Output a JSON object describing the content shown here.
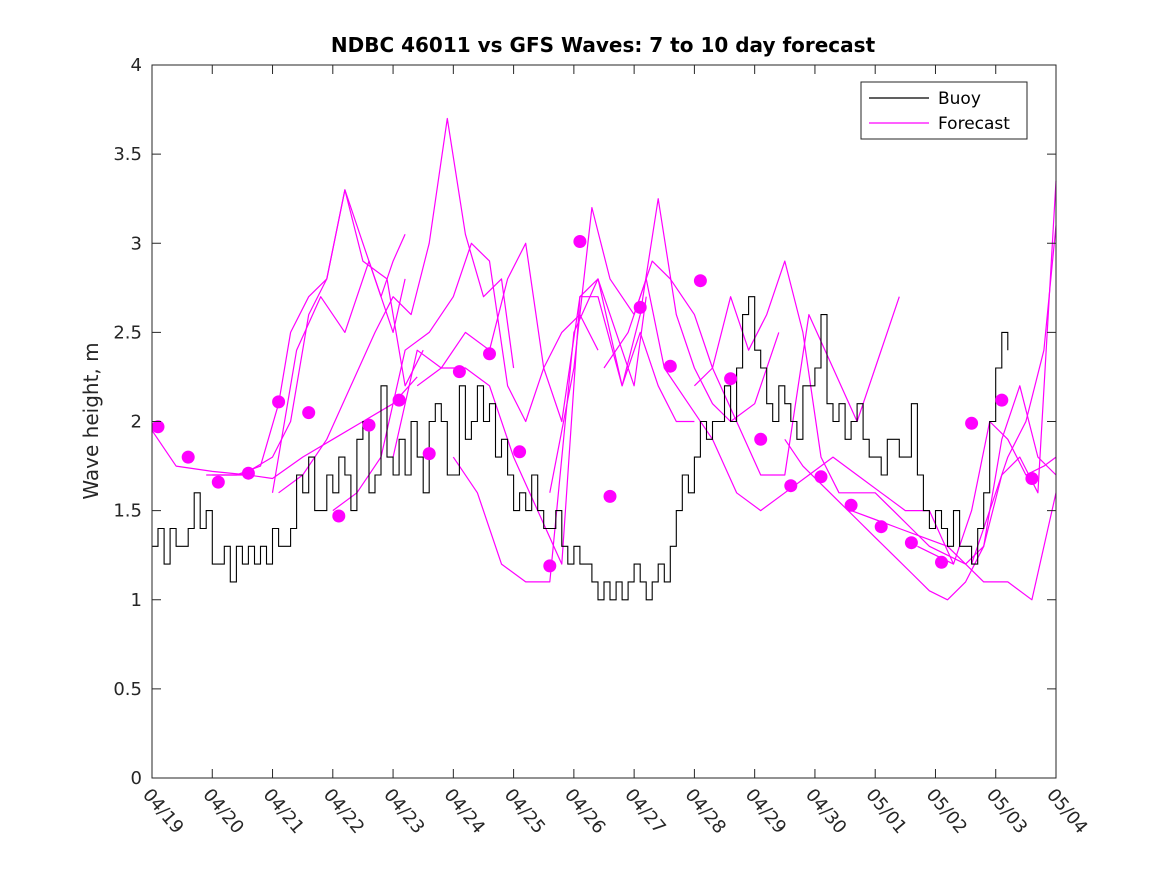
{
  "chart_data": {
    "type": "line",
    "title": "NDBC 46011 vs GFS Waves: 7 to 10 day forecast",
    "xlabel": "",
    "ylabel": "Wave height, m",
    "xlim": [
      "04/19",
      "05/04"
    ],
    "ylim": [
      0,
      4
    ],
    "yticks": [
      0,
      0.5,
      1,
      1.5,
      2,
      2.5,
      3,
      3.5,
      4
    ],
    "ytick_labels": [
      "0",
      "0.5",
      "1",
      "1.5",
      "2",
      "2.5",
      "3",
      "3.5",
      "4"
    ],
    "xtick_labels": [
      "04/19",
      "04/20",
      "04/21",
      "04/22",
      "04/23",
      "04/24",
      "04/25",
      "04/26",
      "04/27",
      "04/28",
      "04/29",
      "04/30",
      "05/01",
      "05/02",
      "05/03",
      "05/04"
    ],
    "legend": {
      "position": "top-right",
      "entries": [
        "Buoy",
        "Forecast"
      ]
    },
    "colors": {
      "buoy": "#000000",
      "forecast": "#ff00ff",
      "axis": "#262626"
    },
    "buoy": {
      "name": "Buoy",
      "x_days_since_0419": [
        0.0,
        0.1,
        0.2,
        0.3,
        0.4,
        0.5,
        0.6,
        0.7,
        0.8,
        0.9,
        1.0,
        1.1,
        1.2,
        1.3,
        1.4,
        1.5,
        1.6,
        1.7,
        1.8,
        1.9,
        2.0,
        2.1,
        2.2,
        2.3,
        2.4,
        2.5,
        2.6,
        2.7,
        2.8,
        2.9,
        3.0,
        3.1,
        3.2,
        3.3,
        3.4,
        3.5,
        3.6,
        3.7,
        3.8,
        3.9,
        4.0,
        4.1,
        4.2,
        4.3,
        4.4,
        4.5,
        4.6,
        4.7,
        4.8,
        4.9,
        5.0,
        5.1,
        5.2,
        5.3,
        5.4,
        5.5,
        5.6,
        5.7,
        5.8,
        5.9,
        6.0,
        6.1,
        6.2,
        6.3,
        6.4,
        6.5,
        6.6,
        6.7,
        6.8,
        6.9,
        7.0,
        7.1,
        7.2,
        7.3,
        7.4,
        7.5,
        7.6,
        7.7,
        7.8,
        7.9,
        8.0,
        8.1,
        8.2,
        8.3,
        8.4,
        8.5,
        8.6,
        8.7,
        8.8,
        8.9,
        9.0,
        9.1,
        9.2,
        9.3,
        9.4,
        9.5,
        9.6,
        9.7,
        9.8,
        9.9,
        10.0,
        10.1,
        10.2,
        10.3,
        10.4,
        10.5,
        10.6,
        10.7,
        10.8,
        10.9,
        11.0,
        11.1,
        11.2,
        11.3,
        11.4,
        11.5,
        11.6,
        11.7,
        11.8,
        11.9,
        12.0,
        12.1,
        12.2,
        12.3,
        12.4,
        12.5,
        12.6,
        12.7,
        12.8,
        12.9,
        13.0,
        13.1,
        13.2,
        13.3,
        13.4,
        13.5,
        13.6,
        13.7,
        13.8,
        13.9,
        14.0,
        14.1,
        14.2
      ],
      "values": [
        1.3,
        1.4,
        1.2,
        1.4,
        1.3,
        1.3,
        1.4,
        1.6,
        1.4,
        1.5,
        1.2,
        1.2,
        1.3,
        1.1,
        1.3,
        1.2,
        1.3,
        1.2,
        1.3,
        1.2,
        1.4,
        1.3,
        1.3,
        1.4,
        1.7,
        1.6,
        1.8,
        1.5,
        1.5,
        1.7,
        1.6,
        1.8,
        1.7,
        1.5,
        1.9,
        2.0,
        1.6,
        1.7,
        2.2,
        1.8,
        1.7,
        1.9,
        1.7,
        2.0,
        1.8,
        1.6,
        2.0,
        2.1,
        2.0,
        1.7,
        1.7,
        2.2,
        1.9,
        2.0,
        2.2,
        2.0,
        2.1,
        1.8,
        1.9,
        1.7,
        1.5,
        1.6,
        1.5,
        1.7,
        1.5,
        1.4,
        1.4,
        1.5,
        1.3,
        1.2,
        1.3,
        1.2,
        1.2,
        1.1,
        1.0,
        1.1,
        1.0,
        1.1,
        1.0,
        1.1,
        1.2,
        1.1,
        1.0,
        1.1,
        1.2,
        1.1,
        1.3,
        1.5,
        1.7,
        1.6,
        1.8,
        2.0,
        1.9,
        2.0,
        2.0,
        2.2,
        2.0,
        2.3,
        2.6,
        2.7,
        2.4,
        2.3,
        2.1,
        2.0,
        2.2,
        2.1,
        2.0,
        1.9,
        2.2,
        2.2,
        2.3,
        2.6,
        2.1,
        2.0,
        2.1,
        1.9,
        2.0,
        2.1,
        1.9,
        1.8,
        1.8,
        1.7,
        1.9,
        1.9,
        1.8,
        1.8,
        2.1,
        1.7,
        1.5,
        1.4,
        1.5,
        1.4,
        1.3,
        1.5,
        1.3,
        1.3,
        1.2,
        1.4,
        1.6,
        2.0,
        2.3,
        2.5,
        2.4
      ]
    },
    "forecast": {
      "name": "Forecast",
      "lines": [
        {
          "x": [
            0.0,
            0.4,
            1.0,
            1.6,
            2.0,
            2.5,
            3.0,
            3.5,
            4.0,
            4.4
          ],
          "y": [
            1.95,
            1.75,
            1.72,
            1.7,
            1.68,
            1.8,
            1.9,
            2.0,
            2.1,
            2.25
          ]
        },
        {
          "x": [
            0.9,
            1.5,
            2.0,
            2.3,
            2.6,
            2.9,
            3.2,
            3.5,
            3.9,
            4.2,
            4.5
          ],
          "y": [
            1.7,
            1.7,
            1.8,
            2.0,
            2.6,
            2.8,
            3.3,
            2.9,
            2.8,
            2.2,
            2.4
          ]
        },
        {
          "x": [
            1.0,
            1.4,
            1.8,
            2.1,
            2.3,
            2.6,
            2.9,
            3.2,
            3.5,
            3.8,
            4.0,
            4.2
          ],
          "y": [
            1.7,
            1.7,
            1.75,
            2.1,
            2.5,
            2.7,
            2.8,
            3.3,
            3.0,
            2.7,
            2.9,
            3.05
          ]
        },
        {
          "x": [
            2.0,
            2.4,
            2.8,
            3.2,
            3.6,
            4.0,
            4.2
          ],
          "y": [
            1.6,
            2.4,
            2.7,
            2.5,
            2.9,
            2.5,
            2.8
          ]
        },
        {
          "x": [
            2.1,
            2.5,
            2.9,
            3.3,
            3.7,
            4.0,
            4.3,
            4.6,
            4.9,
            5.2,
            5.5,
            5.8,
            6.0
          ],
          "y": [
            1.6,
            1.7,
            1.9,
            2.2,
            2.5,
            2.7,
            2.6,
            3.0,
            3.7,
            3.05,
            2.7,
            2.8,
            2.3
          ]
        },
        {
          "x": [
            3.0,
            3.4,
            3.8,
            4.2,
            4.6,
            5.0,
            5.3,
            5.6,
            5.9,
            6.2,
            6.5,
            6.8,
            7.1,
            7.4
          ],
          "y": [
            1.5,
            1.6,
            1.8,
            2.4,
            2.5,
            2.7,
            3.0,
            2.9,
            2.2,
            2.0,
            2.3,
            2.5,
            2.6,
            2.4
          ]
        },
        {
          "x": [
            4.0,
            4.4,
            4.8,
            5.2,
            5.6,
            5.9,
            6.2,
            6.5,
            6.8,
            7.1,
            7.4,
            7.7,
            8.0,
            8.2
          ],
          "y": [
            1.8,
            2.4,
            2.3,
            2.5,
            2.4,
            2.8,
            3.0,
            2.3,
            2.0,
            2.7,
            2.8,
            2.5,
            2.2,
            2.7
          ]
        },
        {
          "x": [
            4.4,
            4.8,
            5.2,
            5.6,
            6.0,
            6.4,
            6.8,
            7.1,
            7.4,
            7.8,
            8.1,
            8.4,
            8.7,
            9.0
          ],
          "y": [
            2.2,
            2.3,
            2.3,
            2.2,
            1.8,
            1.5,
            1.2,
            2.7,
            2.7,
            2.2,
            2.5,
            2.2,
            2.0,
            2.0
          ]
        },
        {
          "x": [
            5.0,
            5.4,
            5.8,
            6.2,
            6.6,
            7.0,
            7.4,
            7.8,
            8.1,
            8.4,
            8.7,
            9.0,
            9.3,
            9.6,
            10.0,
            10.4
          ],
          "y": [
            1.8,
            1.6,
            1.2,
            1.1,
            1.1,
            2.5,
            2.8,
            2.2,
            2.6,
            3.25,
            2.6,
            2.3,
            2.1,
            2.0,
            2.1,
            2.5
          ]
        },
        {
          "x": [
            6.6,
            7.0,
            7.3,
            7.6,
            8.0,
            8.3,
            8.6,
            9.0,
            9.3,
            9.7,
            10.1,
            10.5,
            10.9,
            11.3,
            11.7,
            12.0,
            12.4
          ],
          "y": [
            1.6,
            2.3,
            3.2,
            2.8,
            2.6,
            2.9,
            2.8,
            2.6,
            2.3,
            2.0,
            1.7,
            1.7,
            2.6,
            2.3,
            2.0,
            2.3,
            2.7
          ]
        },
        {
          "x": [
            7.5,
            7.9,
            8.2,
            8.5,
            8.9,
            9.3,
            9.7,
            10.1,
            10.5,
            10.9,
            11.3,
            11.7,
            12.1,
            12.5,
            12.9,
            13.3
          ],
          "y": [
            2.3,
            2.5,
            2.8,
            2.3,
            2.1,
            1.9,
            1.6,
            1.5,
            1.6,
            1.7,
            1.8,
            1.7,
            1.6,
            1.5,
            1.5,
            1.2
          ]
        },
        {
          "x": [
            9.0,
            9.3,
            9.6,
            9.9,
            10.2,
            10.5,
            10.8,
            11.1,
            11.4,
            11.7,
            12.0,
            12.3,
            12.6,
            12.9,
            13.2,
            13.5,
            13.8,
            14.2,
            14.6,
            15.0
          ],
          "y": [
            2.2,
            2.3,
            2.7,
            2.4,
            2.6,
            2.9,
            2.5,
            1.8,
            1.6,
            1.6,
            1.6,
            1.5,
            1.4,
            1.3,
            1.25,
            1.2,
            1.1,
            1.1,
            1.0,
            1.6
          ]
        },
        {
          "x": [
            10.5,
            10.8,
            11.1,
            11.4,
            11.7,
            12.0,
            12.3,
            12.6,
            12.9,
            13.2,
            13.5,
            13.8,
            14.1,
            14.4,
            14.7,
            15.0
          ],
          "y": [
            1.9,
            1.75,
            1.65,
            1.55,
            1.45,
            1.35,
            1.25,
            1.15,
            1.05,
            1.0,
            1.1,
            1.3,
            1.7,
            1.8,
            1.6,
            3.35
          ]
        },
        {
          "x": [
            11.6,
            12.0,
            12.4,
            12.8,
            13.2,
            13.5,
            13.8,
            14.1,
            14.4,
            14.7,
            15.0
          ],
          "y": [
            1.5,
            1.45,
            1.4,
            1.35,
            1.3,
            1.2,
            1.3,
            1.9,
            2.2,
            1.8,
            1.7
          ]
        },
        {
          "x": [
            12.7,
            13.0,
            13.3,
            13.6,
            13.9,
            14.2,
            14.5,
            14.8,
            15.0
          ],
          "y": [
            1.3,
            1.25,
            1.2,
            1.5,
            2.0,
            1.9,
            1.7,
            1.75,
            1.8
          ]
        },
        {
          "x": [
            13.6,
            13.9,
            14.2,
            14.5,
            14.8,
            15.0
          ],
          "y": [
            1.2,
            1.5,
            1.8,
            2.0,
            2.4,
            3.1
          ]
        }
      ],
      "markers": {
        "x": [
          0.1,
          0.6,
          1.1,
          1.6,
          2.1,
          2.6,
          3.1,
          3.6,
          4.1,
          4.6,
          5.1,
          5.6,
          6.1,
          6.6,
          7.1,
          7.6,
          8.1,
          8.6,
          9.1,
          9.6,
          10.1,
          10.6,
          11.1,
          11.6,
          12.1,
          12.6,
          13.1,
          13.6,
          14.1,
          14.6
        ],
        "y": [
          1.97,
          1.8,
          1.66,
          1.71,
          2.11,
          2.05,
          1.47,
          1.98,
          2.12,
          1.82,
          2.28,
          2.38,
          1.83,
          1.19,
          3.01,
          1.58,
          2.64,
          2.31,
          2.79,
          2.24,
          1.9,
          1.64,
          1.69,
          1.53,
          1.41,
          1.32,
          1.21,
          1.99,
          2.12,
          1.68
        ]
      }
    }
  }
}
